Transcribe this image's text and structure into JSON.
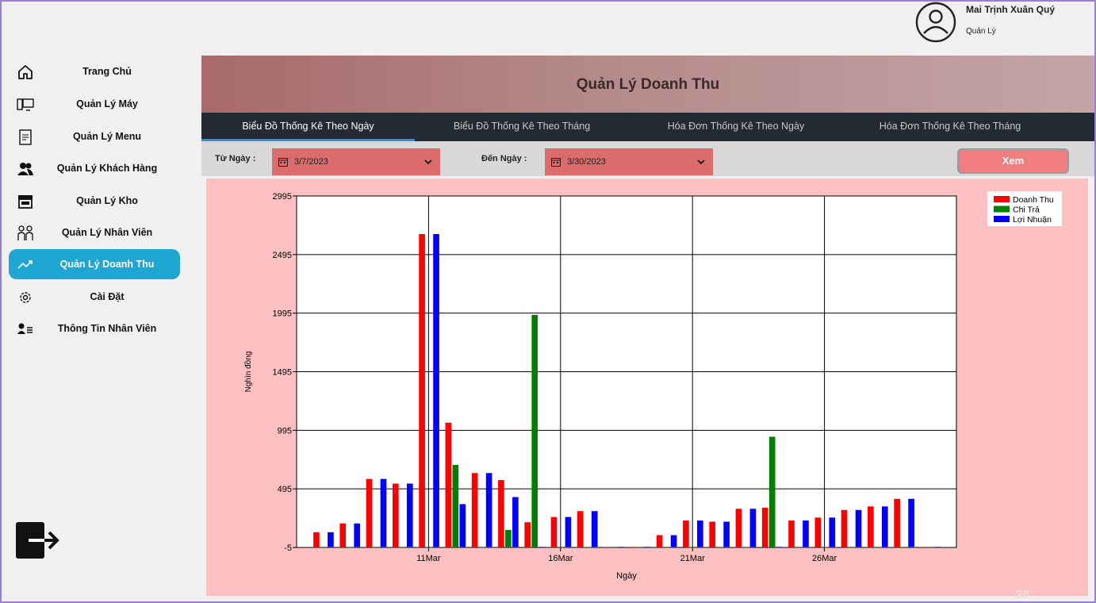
{
  "user": {
    "name": "Mai Trịnh Xuân Quý",
    "role": "Quản Lý"
  },
  "sidebar": {
    "items": [
      {
        "label": "Trang Chủ",
        "icon": "home-icon"
      },
      {
        "label": "Quản Lý Máy",
        "icon": "computer-icon"
      },
      {
        "label": "Quản Lý Menu",
        "icon": "menu-icon"
      },
      {
        "label": "Quản Lý Khách Hàng",
        "icon": "customers-icon"
      },
      {
        "label": "Quản Lý Kho",
        "icon": "store-icon"
      },
      {
        "label": "Quản Lý Nhân Viên",
        "icon": "staff-icon"
      },
      {
        "label": "Quản Lý Doanh Thu",
        "icon": "trend-icon",
        "active": true
      },
      {
        "label": "Cài Đặt",
        "icon": "gear-icon"
      },
      {
        "label": "Thông Tin Nhân Viên",
        "icon": "user-info-icon"
      }
    ],
    "logout_icon": "logout-icon"
  },
  "main": {
    "title": "Quản Lý Doanh Thu",
    "tabs": [
      {
        "label": "Biểu Đồ Thống Kê Theo Ngày",
        "active": true
      },
      {
        "label": "Biểu Đồ Thống Kê Theo Tháng"
      },
      {
        "label": "Hóa Đơn Thống Kê Theo Ngày"
      },
      {
        "label": "Hóa Đơn Thống Kê Theo Tháng"
      }
    ],
    "filters": {
      "from_label": "Từ Ngày :",
      "from_value": "3/7/2023",
      "to_label": "Đến Ngày :",
      "to_value": "3/30/2023",
      "view_button": "Xem"
    }
  },
  "colors": {
    "accent": "#1ea7d2",
    "doanh_thu": "#ff0000",
    "chi_tra": "#008000",
    "loi_nhuan": "#0000ff"
  },
  "page_number": "28",
  "chart_data": {
    "type": "bar",
    "xlabel": "Ngày",
    "ylabel": "Nghìn đồng",
    "ylim": [
      -5,
      2995
    ],
    "yticks": [
      -5,
      495,
      995,
      1495,
      1995,
      2495,
      2995
    ],
    "x_tick_labels": [
      "11Mar",
      "16Mar",
      "21Mar",
      "26Mar"
    ],
    "grid": true,
    "legend_position": "top-right",
    "categories": [
      "7Mar",
      "8Mar",
      "9Mar",
      "10Mar",
      "11Mar",
      "12Mar",
      "13Mar",
      "14Mar",
      "15Mar",
      "16Mar",
      "17Mar",
      "18Mar",
      "19Mar",
      "20Mar",
      "21Mar",
      "22Mar",
      "23Mar",
      "24Mar",
      "25Mar",
      "26Mar",
      "27Mar",
      "28Mar",
      "29Mar",
      "30Mar"
    ],
    "series": [
      {
        "name": "Doanh Thu",
        "color": "#ff0000",
        "values": [
          125,
          200,
          580,
          540,
          2670,
          1060,
          630,
          570,
          210,
          255,
          305,
          0,
          0,
          100,
          225,
          215,
          325,
          335,
          225,
          250,
          315,
          345,
          410,
          0
        ]
      },
      {
        "name": "Chi Trả",
        "color": "#008000",
        "values": [
          0,
          0,
          0,
          0,
          0,
          700,
          0,
          145,
          1980,
          0,
          0,
          0,
          0,
          0,
          0,
          0,
          0,
          940,
          0,
          0,
          0,
          0,
          0,
          0
        ]
      },
      {
        "name": "Lợi Nhuận",
        "color": "#0000ff",
        "values": [
          125,
          200,
          580,
          540,
          2670,
          365,
          630,
          425,
          -5,
          255,
          305,
          0,
          0,
          100,
          225,
          215,
          325,
          -5,
          225,
          250,
          315,
          345,
          410,
          0
        ]
      }
    ]
  }
}
